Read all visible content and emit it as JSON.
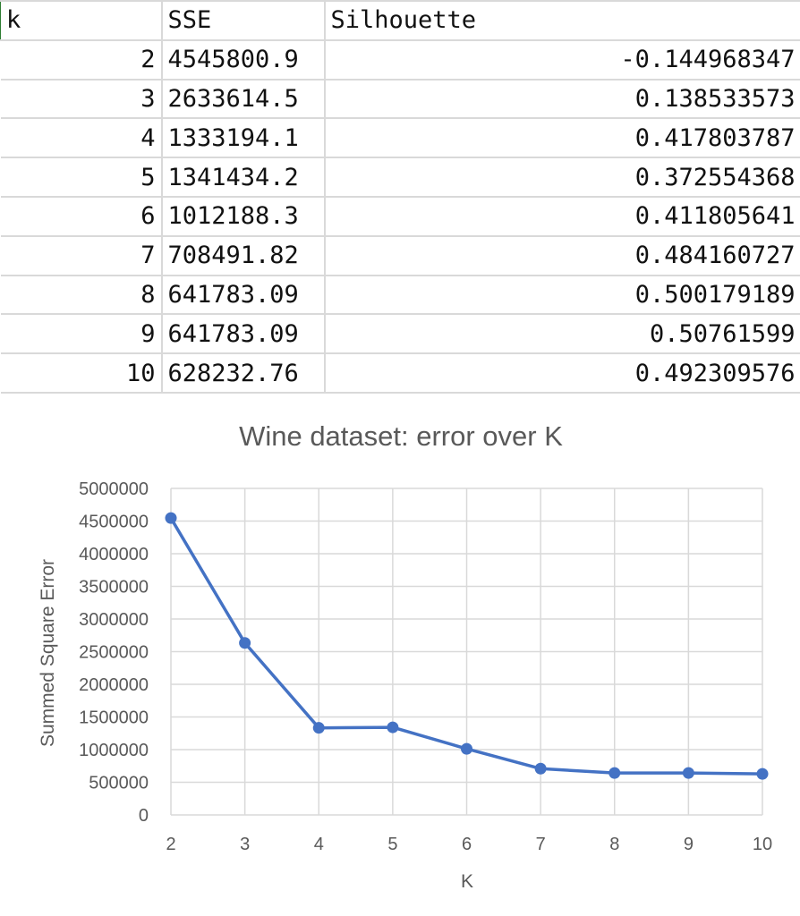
{
  "table": {
    "headers": [
      "k",
      "SSE",
      "Silhouette"
    ],
    "rows": [
      [
        "2",
        "4545800.9",
        "-0.144968347"
      ],
      [
        "3",
        "2633614.5",
        "0.138533573"
      ],
      [
        "4",
        "1333194.1",
        "0.417803787"
      ],
      [
        "5",
        "1341434.2",
        "0.372554368"
      ],
      [
        "6",
        "1012188.3",
        "0.411805641"
      ],
      [
        "7",
        "708491.82",
        "0.484160727"
      ],
      [
        "8",
        "641783.09",
        "0.500179189"
      ],
      [
        "9",
        "641783.09",
        "0.50761599"
      ],
      [
        "10",
        "628232.76",
        "0.492309576"
      ]
    ]
  },
  "chart_data": {
    "type": "line",
    "title": "Wine dataset: error over K",
    "xlabel": "K",
    "ylabel": "Summed Square Error",
    "x": [
      2,
      3,
      4,
      5,
      6,
      7,
      8,
      9,
      10
    ],
    "series": [
      {
        "values": [
          4545800.9,
          2633614.5,
          1333194.1,
          1341434.2,
          1012188.3,
          708491.82,
          641783.09,
          641783.09,
          628232.76
        ]
      }
    ],
    "xlim": [
      2,
      10
    ],
    "ylim": [
      0,
      5000000
    ],
    "ytick_step": 500000,
    "yticks": [
      "0",
      "500000",
      "1000000",
      "1500000",
      "2000000",
      "2500000",
      "3000000",
      "3500000",
      "4000000",
      "4500000",
      "5000000"
    ],
    "xticks": [
      "2",
      "3",
      "4",
      "5",
      "6",
      "7",
      "8",
      "9",
      "10"
    ],
    "grid": true,
    "legend": "none",
    "colors": {
      "line": "#4472c4",
      "grid": "#d9d9d9",
      "text": "#595959"
    }
  }
}
